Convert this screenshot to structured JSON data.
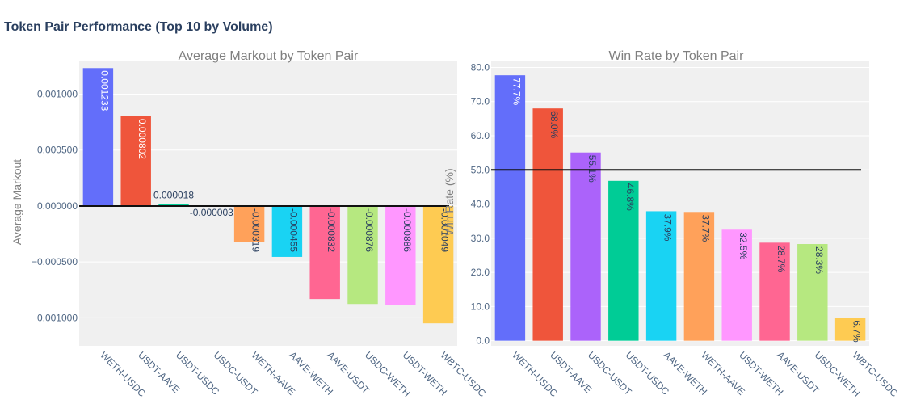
{
  "page": {
    "title": "Token Pair Performance (Top 10 by Volume)"
  },
  "chart_data": [
    {
      "type": "bar",
      "title": "Average Markout by Token Pair",
      "xlabel": "",
      "ylabel": "Average Markout",
      "ylim": [
        -0.00125,
        0.0013
      ],
      "yticks": [
        -0.001,
        -0.0005,
        0,
        0.0005,
        0.001
      ],
      "ytick_labels": [
        "−0.001000",
        "−0.000500",
        "0.000000",
        "0.000500",
        "0.001000"
      ],
      "categories": [
        "WETH-USDC",
        "USDT-AAVE",
        "USDT-USDC",
        "USDC-USDT",
        "WETH-AAVE",
        "AAVE-WETH",
        "AAVE-USDT",
        "USDC-WETH",
        "USDT-WETH",
        "WBTC-USDC"
      ],
      "values": [
        0.001233,
        0.000802,
        1.8e-05,
        -3e-06,
        -0.000319,
        -0.000455,
        -0.000832,
        -0.000876,
        -0.000886,
        -0.001049
      ],
      "data_labels": [
        "0.001233",
        "0.000802",
        "0.000018",
        "-0.000003",
        "-0.000319",
        "-0.000455",
        "-0.000832",
        "-0.000876",
        "-0.000886",
        "-0.001049"
      ],
      "colors": [
        "#636efa",
        "#ef553b",
        "#00cc96",
        "#ab63fa",
        "#ffa15a",
        "#19d3f3",
        "#ff6692",
        "#b6e880",
        "#ff97ff",
        "#fecb52"
      ],
      "reference_line": 0,
      "grid": true
    },
    {
      "type": "bar",
      "title": "Win Rate by Token Pair",
      "xlabel": "",
      "ylabel": "Win Rate (%)",
      "ylim": [
        -1.5,
        82
      ],
      "yticks": [
        0,
        10,
        20,
        30,
        40,
        50,
        60,
        70,
        80
      ],
      "ytick_labels": [
        "0.0",
        "10.0",
        "20.0",
        "30.0",
        "40.0",
        "50.0",
        "60.0",
        "70.0",
        "80.0"
      ],
      "categories": [
        "WETH-USDC",
        "USDT-AAVE",
        "USDC-USDT",
        "USDT-USDC",
        "AAVE-WETH",
        "WETH-AAVE",
        "USDT-WETH",
        "AAVE-USDT",
        "USDC-WETH",
        "WBTC-USDC"
      ],
      "values": [
        77.7,
        68.0,
        55.1,
        46.8,
        37.9,
        37.7,
        32.5,
        28.7,
        28.3,
        6.7
      ],
      "data_labels": [
        "77.7%",
        "68.0%",
        "55.1%",
        "46.8%",
        "37.9%",
        "37.7%",
        "32.5%",
        "28.7%",
        "28.3%",
        "6.7%"
      ],
      "colors": [
        "#636efa",
        "#ef553b",
        "#ab63fa",
        "#00cc96",
        "#19d3f3",
        "#ffa15a",
        "#ff97ff",
        "#ff6692",
        "#b6e880",
        "#fecb52"
      ],
      "reference_line": 50,
      "grid": true
    }
  ]
}
